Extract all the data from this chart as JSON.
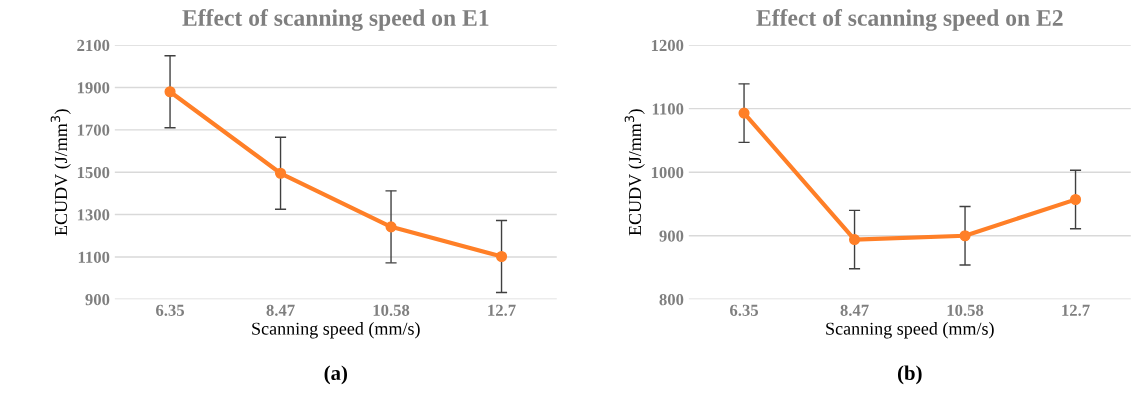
{
  "chart_data": [
    {
      "type": "line",
      "title": "Effect of scanning speed on E1",
      "xlabel": "Scanning speed (mm/s)",
      "ylabel": "ECUDV (J/mm$^{3}$)",
      "categories": [
        "6.35",
        "8.47",
        "10.58",
        "12.7"
      ],
      "series": [
        {
          "color": "#ff7f27",
          "values": [
            1880,
            1495,
            1242,
            1102
          ],
          "errors": [
            170,
            170,
            170,
            170
          ]
        }
      ],
      "ylim": [
        900,
        2100
      ],
      "yticks": [
        900,
        1100,
        1300,
        1500,
        1700,
        1900,
        2100
      ],
      "grid": "y",
      "marker": "circle",
      "line_style": "solid",
      "annotations": [
        "(a)"
      ]
    },
    {
      "type": "line",
      "title": "Effect of scanning speed on E2",
      "xlabel": "Scanning speed (mm/s)",
      "ylabel": "ECUDV (J/mm$^{3}$)",
      "categories": [
        "6.35",
        "8.47",
        "10.58",
        "12.7"
      ],
      "series": [
        {
          "color": "#ff7f27",
          "values": [
            1093,
            894,
            900,
            957
          ],
          "errors": [
            46,
            46,
            46,
            46
          ]
        }
      ],
      "ylim": [
        800,
        1200
      ],
      "yticks": [
        800,
        900,
        1000,
        1100,
        1200
      ],
      "grid": "y",
      "marker": "circle",
      "line_style": "solid",
      "annotations": [
        "(b)"
      ]
    }
  ]
}
